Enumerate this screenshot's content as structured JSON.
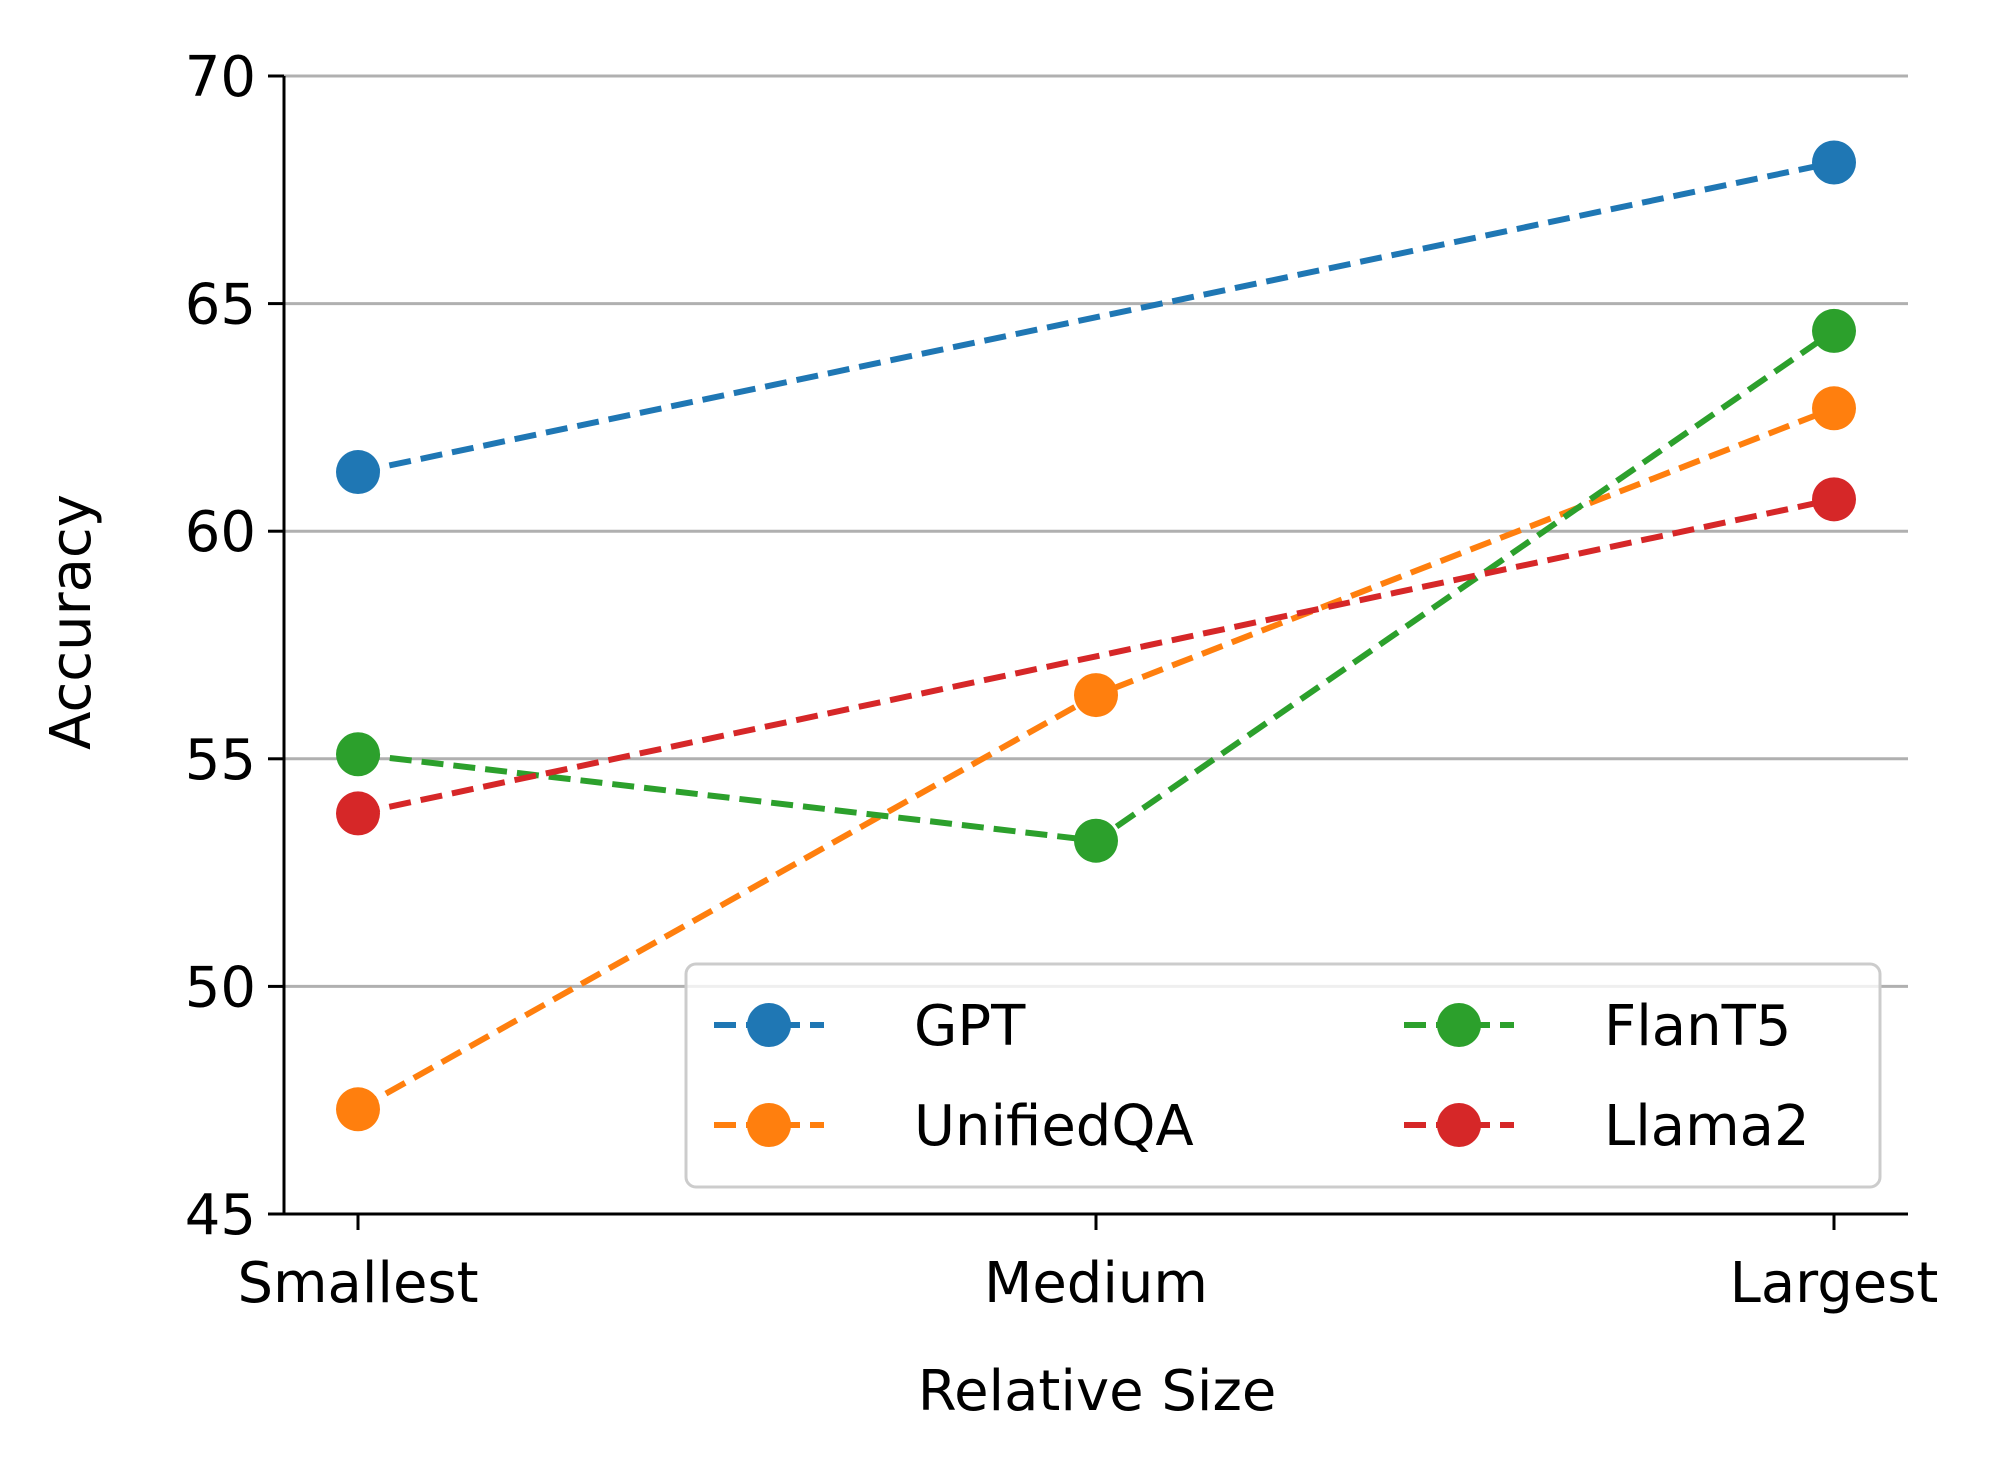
{
  "chart_data": {
    "type": "line",
    "title": "",
    "xlabel": "Relative Size",
    "ylabel": "Accuracy",
    "categories": [
      "Smallest",
      "Medium",
      "Largest"
    ],
    "ylim": [
      45,
      70
    ],
    "yticks": [
      45,
      50,
      55,
      60,
      65,
      70
    ],
    "grid": "horizontal",
    "line_style": "dashed",
    "marker": "circle",
    "legend": {
      "position": "bottom-right",
      "columns": 2
    },
    "series": [
      {
        "name": "GPT",
        "color": "#1f77b4",
        "values": [
          61.3,
          null,
          68.1
        ]
      },
      {
        "name": "UnifiedQA",
        "color": "#ff7f0e",
        "values": [
          47.3,
          56.4,
          62.7
        ]
      },
      {
        "name": "FlanT5",
        "color": "#2ca02c",
        "values": [
          55.1,
          53.2,
          64.4
        ]
      },
      {
        "name": "Llama2",
        "color": "#d62728",
        "values": [
          53.8,
          null,
          60.7
        ]
      }
    ]
  }
}
